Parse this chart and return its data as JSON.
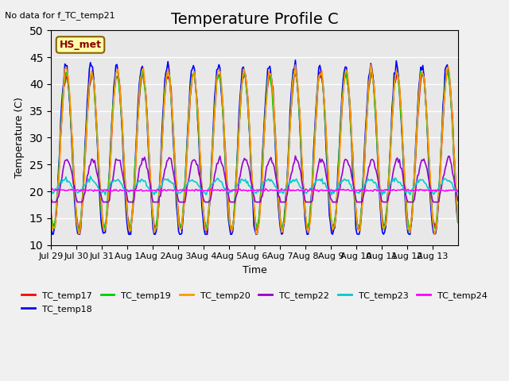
{
  "title": "Temperature Profile C",
  "subtitle": "No data for f_TC_temp21",
  "xlabel": "Time",
  "ylabel": "Temperature (C)",
  "ylim": [
    10,
    50
  ],
  "annotation": "HS_met",
  "series_colors": {
    "TC_temp17": "#ff0000",
    "TC_temp18": "#0000ff",
    "TC_temp19": "#00cc00",
    "TC_temp20": "#ff9900",
    "TC_temp22": "#9900cc",
    "TC_temp23": "#00cccc",
    "TC_temp24": "#ff00ff"
  },
  "xtick_labels": [
    "Jul 29",
    "Jul 30",
    "Jul 31",
    "Aug 1",
    "Aug 2",
    "Aug 3",
    "Aug 4",
    "Aug 5",
    "Aug 6",
    "Aug 7",
    "Aug 8",
    "Aug 9",
    "Aug 10",
    "Aug 11",
    "Aug 12",
    "Aug 13"
  ],
  "background_color": "#e8e8e8",
  "plot_bg_color": "#e8e8e8",
  "grid_color": "#ffffff",
  "title_fontsize": 14,
  "label_fontsize": 9
}
